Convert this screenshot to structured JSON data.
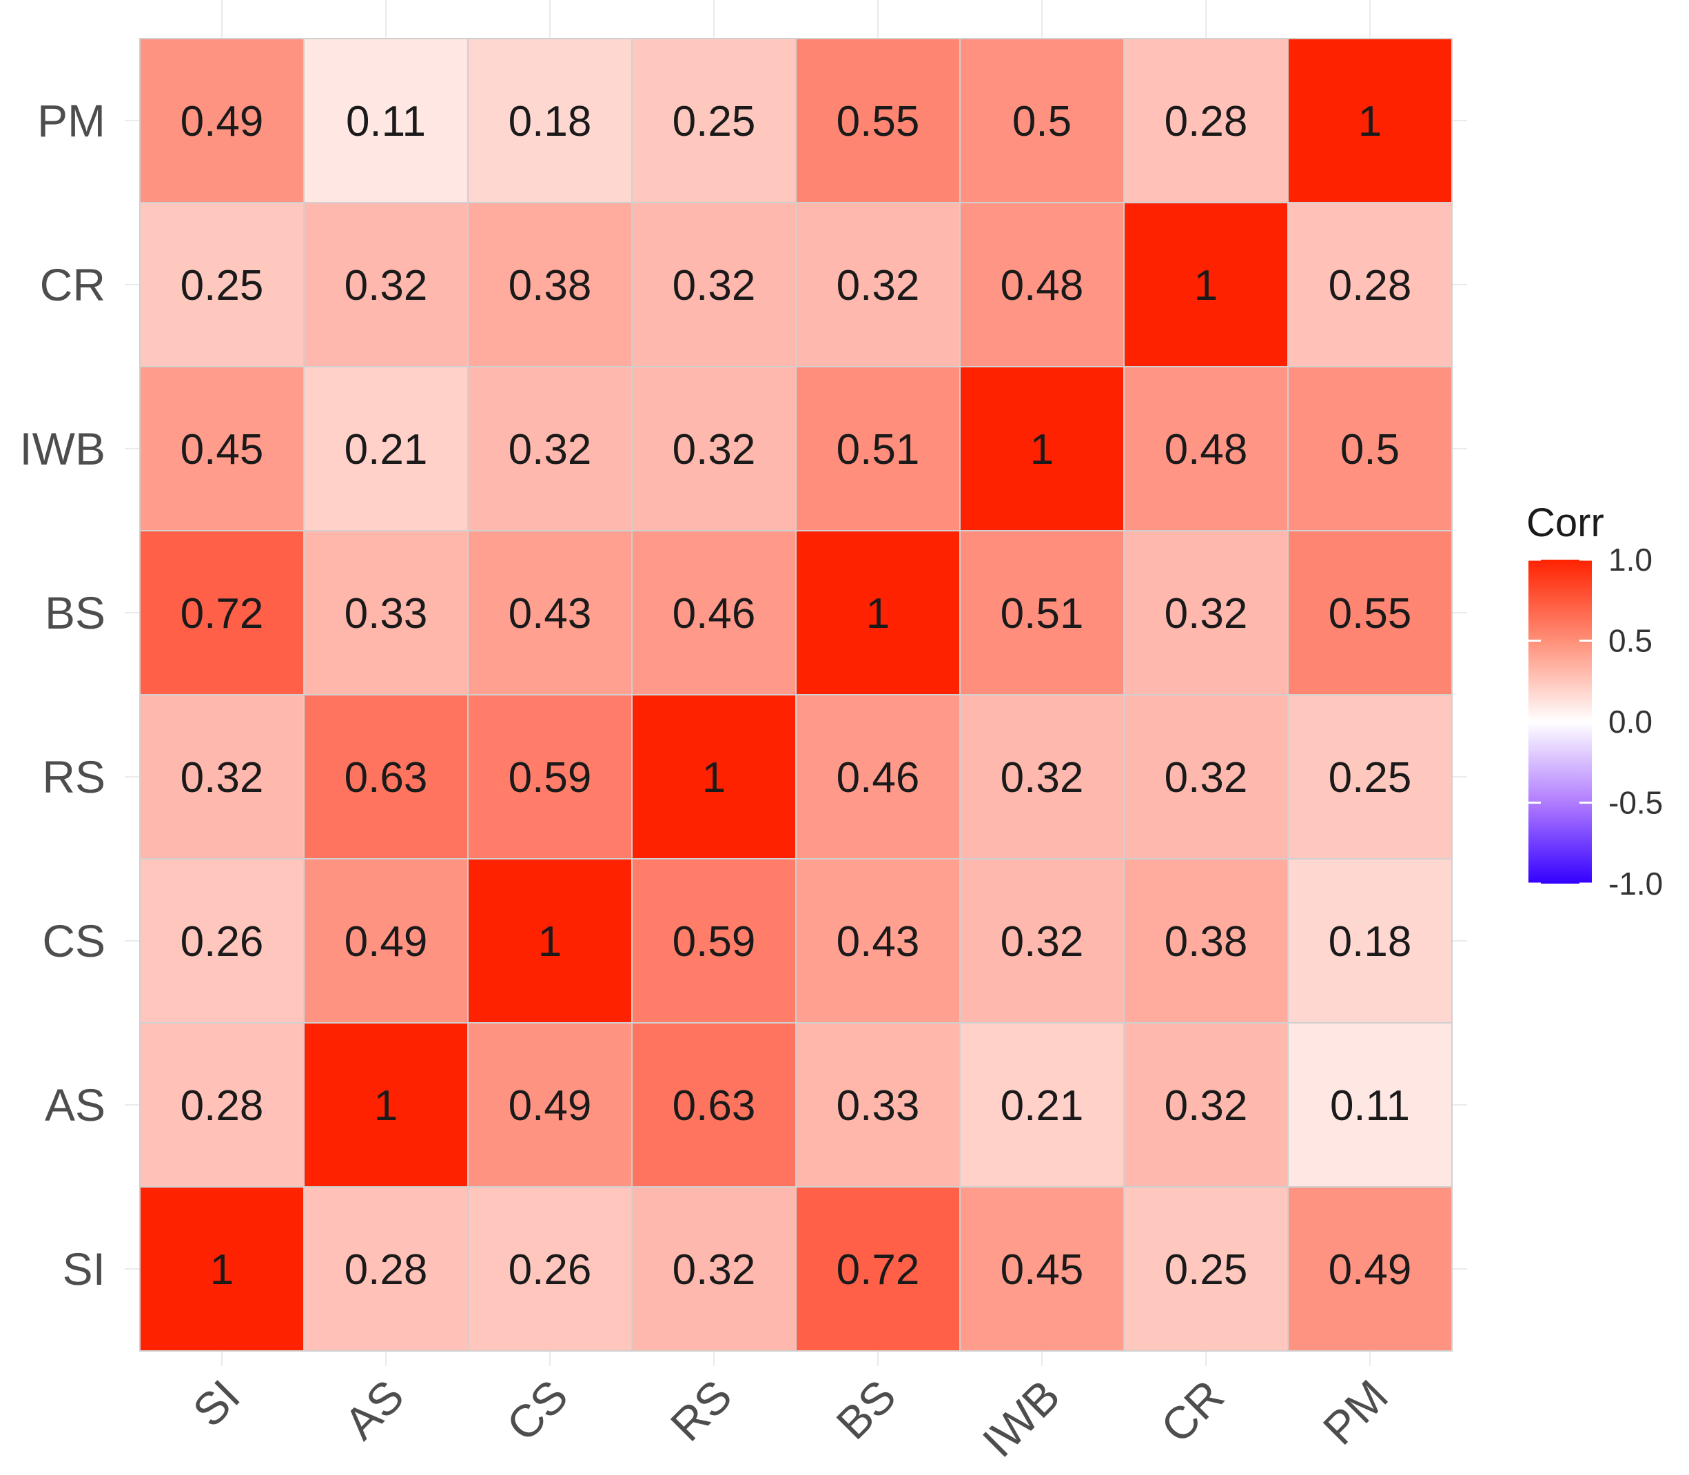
{
  "chart_data": {
    "type": "heatmap",
    "title": "",
    "xlabel": "",
    "ylabel": "",
    "x_categories": [
      "SI",
      "AS",
      "CS",
      "RS",
      "BS",
      "IWB",
      "CR",
      "PM"
    ],
    "y_categories_top_to_bottom": [
      "PM",
      "CR",
      "IWB",
      "BS",
      "RS",
      "CS",
      "AS",
      "SI"
    ],
    "values": [
      [
        0.49,
        0.11,
        0.18,
        0.25,
        0.55,
        0.5,
        0.28,
        1
      ],
      [
        0.25,
        0.32,
        0.38,
        0.32,
        0.32,
        0.48,
        1,
        0.28
      ],
      [
        0.45,
        0.21,
        0.32,
        0.32,
        0.51,
        1,
        0.48,
        0.5
      ],
      [
        0.72,
        0.33,
        0.43,
        0.46,
        1,
        0.51,
        0.32,
        0.55
      ],
      [
        0.32,
        0.63,
        0.59,
        1,
        0.46,
        0.32,
        0.32,
        0.25
      ],
      [
        0.26,
        0.49,
        1,
        0.59,
        0.43,
        0.32,
        0.38,
        0.18
      ],
      [
        0.28,
        1,
        0.49,
        0.63,
        0.33,
        0.21,
        0.32,
        0.11
      ],
      [
        1,
        0.28,
        0.26,
        0.32,
        0.72,
        0.45,
        0.25,
        0.49
      ]
    ],
    "value_labels": [
      [
        "0.49",
        "0.11",
        "0.18",
        "0.25",
        "0.55",
        "0.5",
        "0.28",
        "1"
      ],
      [
        "0.25",
        "0.32",
        "0.38",
        "0.32",
        "0.32",
        "0.48",
        "1",
        "0.28"
      ],
      [
        "0.45",
        "0.21",
        "0.32",
        "0.32",
        "0.51",
        "1",
        "0.48",
        "0.5"
      ],
      [
        "0.72",
        "0.33",
        "0.43",
        "0.46",
        "1",
        "0.51",
        "0.32",
        "0.55"
      ],
      [
        "0.32",
        "0.63",
        "0.59",
        "1",
        "0.46",
        "0.32",
        "0.32",
        "0.25"
      ],
      [
        "0.26",
        "0.49",
        "1",
        "0.59",
        "0.43",
        "0.32",
        "0.38",
        "0.18"
      ],
      [
        "0.28",
        "1",
        "0.49",
        "0.63",
        "0.33",
        "0.21",
        "0.32",
        "0.11"
      ],
      [
        "1",
        "0.28",
        "0.26",
        "0.32",
        "0.72",
        "0.45",
        "0.25",
        "0.49"
      ]
    ],
    "color_scale": {
      "low": "#3300ff",
      "mid": "#ffffff",
      "high": "#ff2200",
      "range": [
        -1.0,
        1.0
      ]
    },
    "legend": {
      "title": "Corr",
      "position": "right",
      "ticks": [
        1.0,
        0.5,
        0.0,
        -0.5,
        -1.0
      ],
      "tick_labels": [
        "1.0",
        "0.5",
        "0.0",
        "-0.5",
        "-1.0"
      ]
    },
    "x_tick_rotation": "45 degrees",
    "grid": true
  }
}
